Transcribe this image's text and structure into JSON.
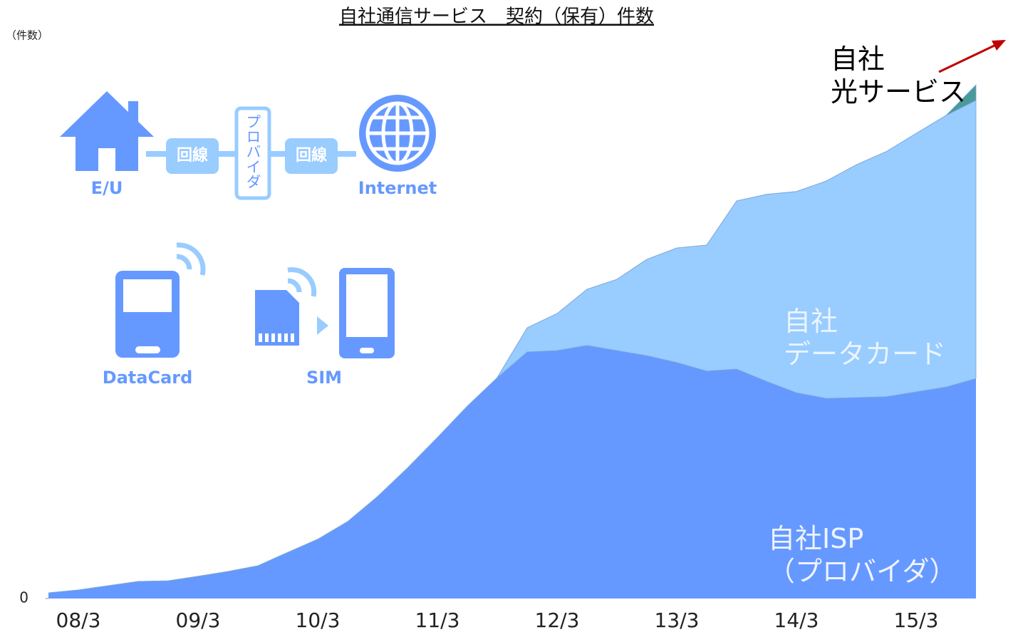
{
  "chart_data": {
    "type": "stacked_area",
    "title": "自社通信サービス　契約（保有）件数",
    "y_unit": "（件数）",
    "categories": [
      null,
      "08/3",
      null,
      null,
      null,
      "09/3",
      null,
      null,
      null,
      "10/3",
      null,
      null,
      null,
      "11/3",
      null,
      null,
      null,
      "12/3",
      null,
      null,
      null,
      "13/3",
      null,
      null,
      null,
      "14/3",
      null,
      null,
      null,
      "15/3",
      null,
      null
    ],
    "series": [
      {
        "name": "自社ISP\n（プロバイダ）",
        "color": "#6699ff",
        "values": [
          1,
          1.5,
          2.25,
          3,
          3.1,
          3.9,
          4.75,
          5.75,
          8.1,
          10.4,
          13.5,
          17.9,
          22.9,
          28.25,
          33.75,
          38.75,
          43.25,
          43.5,
          44.4,
          43.5,
          42.6,
          41.4,
          39.9,
          40.25,
          38.1,
          36.1,
          35.1,
          35.25,
          35.4,
          36.25,
          37.1,
          38.6
        ]
      },
      {
        "name": "自社\nデータカード",
        "color": "#99ccff",
        "values": [
          0,
          0,
          0,
          0,
          0,
          0,
          0,
          0,
          0,
          0,
          0,
          0,
          0,
          0,
          0,
          0,
          4.25,
          6.5,
          9.85,
          12.5,
          16.9,
          20.1,
          22.1,
          29.5,
          32.8,
          35.3,
          38.15,
          40.85,
          43,
          45.35,
          47.65,
          48.8
        ]
      },
      {
        "name": "自社\n光サービス",
        "color": "#4a9a9a",
        "values": [
          0,
          0,
          0,
          0,
          0,
          0,
          0,
          0,
          0,
          0,
          0,
          0,
          0,
          0,
          0,
          0,
          0,
          0,
          0,
          0,
          0,
          0,
          0,
          0,
          0,
          0,
          0,
          0,
          0,
          0,
          0,
          2.7
        ]
      }
    ],
    "ylim": [
      0,
      100
    ],
    "yticks": [
      0
    ],
    "illustration": {
      "labels": [
        "E/U",
        "回線",
        "プロバイダ",
        "回線",
        "Internet",
        "DataCard",
        "SIM"
      ]
    }
  }
}
